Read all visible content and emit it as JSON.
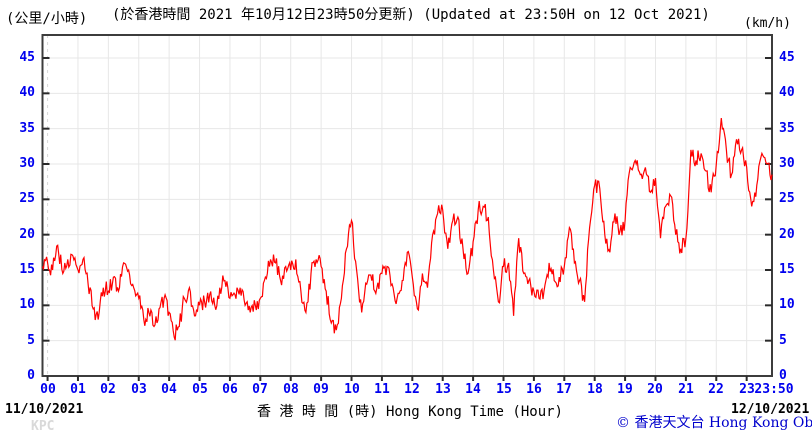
{
  "chart_data": {
    "type": "line",
    "title": "(於香港時間 2021 年10月12日23時50分更新) (Updated at 23:50H on 12 Oct 2021)",
    "unit_left": "(公里/小時)",
    "unit_right": "(km/h)",
    "xlabel": "香 港 時 間 (時)   Hong Kong Time (Hour)",
    "station": "KPC",
    "date_start_label": "11/10/2021",
    "date_end_label": "12/10/2021",
    "x_start": "23:50 11/10/2021",
    "x_end": "23:50 12/10/2021",
    "interval_minutes": 10,
    "x_hour_ticks": [
      "00",
      "01",
      "02",
      "03",
      "04",
      "05",
      "06",
      "07",
      "08",
      "09",
      "10",
      "11",
      "12",
      "13",
      "14",
      "15",
      "16",
      "17",
      "18",
      "19",
      "20",
      "21",
      "22",
      "23"
    ],
    "final_tick": "23:50",
    "y_ticks": [
      0,
      5,
      10,
      15,
      20,
      25,
      30,
      35,
      40,
      45
    ],
    "ylim": [
      0,
      48
    ],
    "grid": true,
    "line_color": "#ff0000",
    "noise_amplitude": 1.2,
    "values": [
      15.5,
      16,
      15,
      18.5,
      14.5,
      16.5,
      17,
      15,
      16.5,
      13,
      9.5,
      8,
      12.5,
      12,
      14,
      12,
      16,
      15,
      12.5,
      11,
      8,
      9,
      7,
      9.5,
      11,
      9,
      5.5,
      7,
      11,
      12.5,
      8.5,
      10,
      10.5,
      11.5,
      10,
      12.5,
      13.5,
      11,
      11.5,
      12.5,
      10,
      9,
      10,
      11,
      14,
      16.5,
      16,
      13.5,
      15.5,
      15,
      16.5,
      12,
      9,
      14.5,
      16.5,
      15.5,
      12,
      7.5,
      6.5,
      11,
      18,
      22,
      15,
      9,
      13,
      13.5,
      12.5,
      14.5,
      15.5,
      13,
      11,
      13.5,
      17.5,
      14,
      9.5,
      14.5,
      12.5,
      20,
      23,
      23.5,
      18,
      22,
      22.5,
      18,
      14.5,
      19,
      23.5,
      24,
      22.5,
      15,
      10.5,
      15.5,
      16,
      8.5,
      19.5,
      14.5,
      13.5,
      12,
      11,
      12,
      16,
      13.5,
      14,
      15.5,
      21,
      16,
      13.5,
      10.5,
      21,
      27,
      26.5,
      20,
      17.5,
      23,
      20.5,
      22,
      29.5,
      30.5,
      28.5,
      29.5,
      26,
      28,
      19.5,
      24,
      25.5,
      20,
      18,
      19.5,
      32,
      30.5,
      31.5,
      29,
      26,
      30,
      36.5,
      32,
      28.5,
      33.5,
      32,
      29.5,
      24,
      27,
      31.5,
      30,
      28.5
    ]
  },
  "footer": {
    "copyright": "© 香港天文台 Hong Kong Observatory"
  },
  "colors": {
    "line": "#ff0000",
    "tick_label": "#0000ee",
    "grid": "#e7e7e7",
    "grid_dashed": "#d9d9d9",
    "frame": "#3c3c3c",
    "tick": "#2a2a2a",
    "station_code": "#d9d9d9",
    "copyright": "#0000cc"
  }
}
